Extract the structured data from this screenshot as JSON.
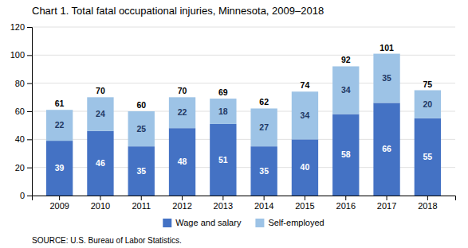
{
  "chart_data": {
    "type": "bar",
    "stacked": true,
    "title": "Chart 1. Total fatal occupational injuries, Minnesota, 2009–2018",
    "categories": [
      "2009",
      "2010",
      "2011",
      "2012",
      "2013",
      "2014",
      "2015",
      "2016",
      "2017",
      "2018"
    ],
    "series": [
      {
        "name": "Wage and salary",
        "color": "#4472C4",
        "values": [
          39,
          46,
          35,
          48,
          51,
          35,
          40,
          58,
          66,
          55
        ]
      },
      {
        "name": "Self-employed",
        "color": "#9DC3E6",
        "values": [
          22,
          24,
          25,
          22,
          18,
          27,
          34,
          34,
          35,
          20
        ]
      }
    ],
    "totals": [
      61,
      70,
      60,
      70,
      69,
      62,
      74,
      92,
      101,
      75
    ],
    "ylim": [
      0,
      120
    ],
    "yticks": [
      0,
      20,
      40,
      60,
      80,
      100,
      120
    ],
    "grid": true,
    "legend": "bottom",
    "data_labels": true,
    "source": "SOURCE: U.S. Bureau of Labor Statistics."
  }
}
